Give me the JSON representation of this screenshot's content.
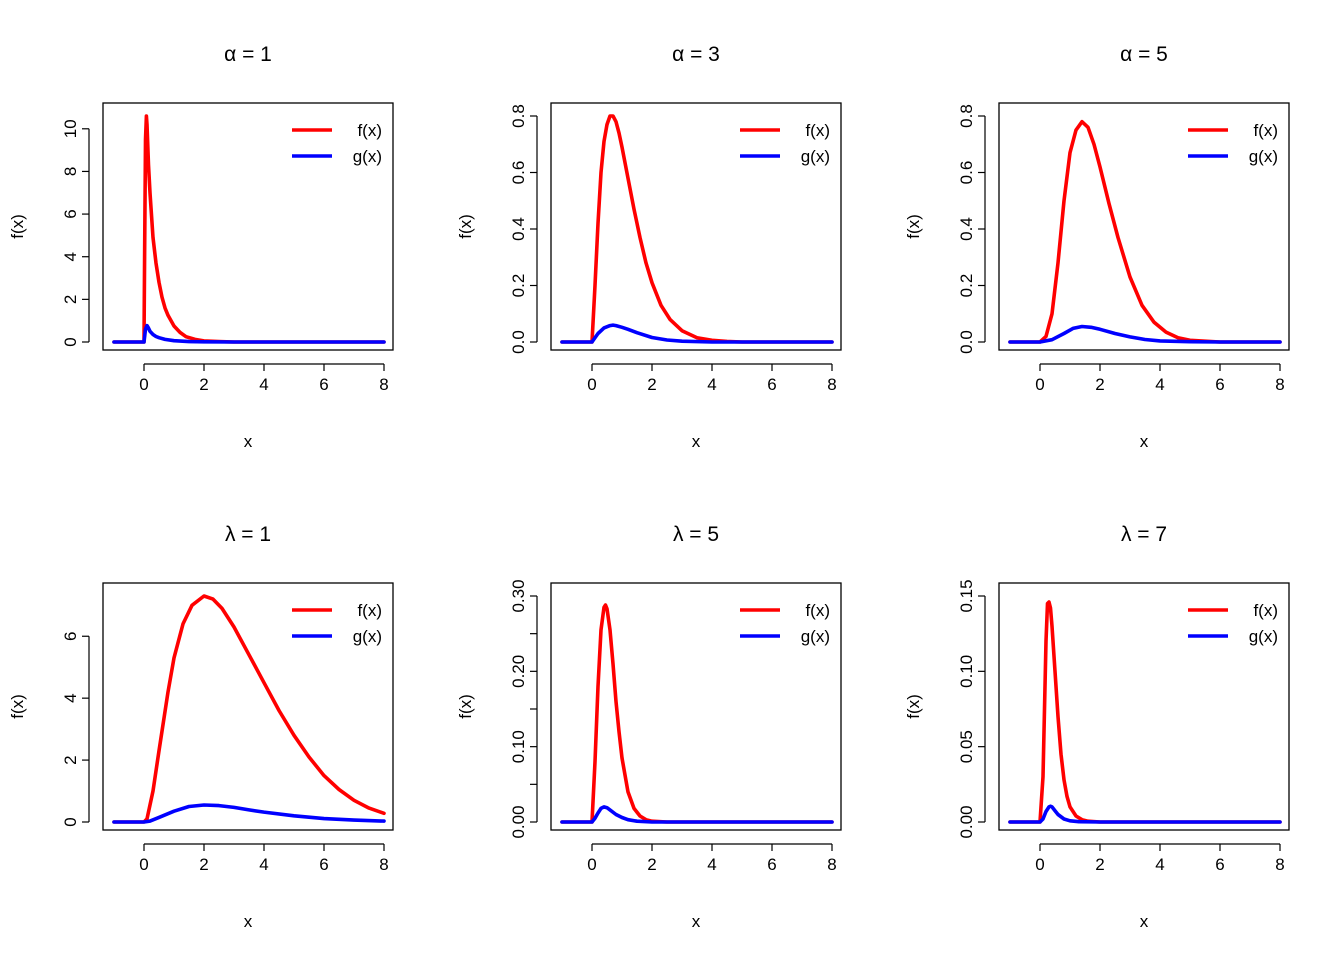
{
  "figure": {
    "x_axis_label": "x",
    "y_axis_label": "f(x)",
    "legend_position": "top-right",
    "legend": [
      {
        "name": "f(x)",
        "color": "#ff0000"
      },
      {
        "name": "g(x)",
        "color": "#0000ff"
      }
    ]
  },
  "chart_data": [
    {
      "type": "line",
      "title": "α = 1",
      "xlabel": "x",
      "ylabel": "f(x)",
      "xlim": [
        -1,
        8
      ],
      "ylim": [
        0,
        10.6
      ],
      "xticks": [
        0,
        2,
        4,
        6,
        8
      ],
      "xtick_labels": [
        "0",
        "2",
        "4",
        "6",
        "8"
      ],
      "yticks": [
        0,
        2,
        4,
        6,
        8,
        10
      ],
      "ytick_labels": [
        "0",
        "2",
        "4",
        "6",
        "8",
        "10"
      ],
      "grid": false,
      "legend": "top-right",
      "series": [
        {
          "name": "f(x)",
          "color": "#ff0000",
          "x": [
            -1,
            0,
            0.02,
            0.05,
            0.08,
            0.1,
            0.15,
            0.2,
            0.3,
            0.4,
            0.5,
            0.6,
            0.7,
            0.8,
            1.0,
            1.2,
            1.4,
            1.7,
            2.0,
            2.5,
            3,
            4,
            5,
            6,
            7,
            8
          ],
          "y": [
            0,
            0,
            4.0,
            9.5,
            10.6,
            10.2,
            8.3,
            7.0,
            4.9,
            3.7,
            2.8,
            2.1,
            1.6,
            1.25,
            0.75,
            0.45,
            0.25,
            0.12,
            0.05,
            0.02,
            0,
            0,
            0,
            0,
            0,
            0
          ]
        },
        {
          "name": "g(x)",
          "color": "#0000ff",
          "x": [
            -1,
            0,
            0.05,
            0.1,
            0.15,
            0.2,
            0.3,
            0.4,
            0.5,
            0.7,
            1.0,
            1.5,
            2.0,
            3,
            4,
            5,
            6,
            7,
            8
          ],
          "y": [
            0,
            0,
            0.6,
            0.77,
            0.65,
            0.5,
            0.35,
            0.26,
            0.2,
            0.12,
            0.06,
            0.02,
            0.01,
            0,
            0,
            0,
            0,
            0,
            0
          ]
        }
      ]
    },
    {
      "type": "line",
      "title": "α = 3",
      "xlabel": "x",
      "ylabel": "f(x)",
      "xlim": [
        -1,
        8
      ],
      "ylim": [
        0,
        0.8
      ],
      "xticks": [
        0,
        2,
        4,
        6,
        8
      ],
      "xtick_labels": [
        "0",
        "2",
        "4",
        "6",
        "8"
      ],
      "yticks": [
        0,
        0.2,
        0.4,
        0.6,
        0.8
      ],
      "ytick_labels": [
        "0.0",
        "0.2",
        "0.4",
        "0.6",
        "0.8"
      ],
      "grid": false,
      "legend": "top-right",
      "series": [
        {
          "name": "f(x)",
          "color": "#ff0000",
          "x": [
            -1,
            0,
            0.1,
            0.2,
            0.3,
            0.4,
            0.5,
            0.6,
            0.7,
            0.8,
            0.9,
            1.0,
            1.2,
            1.4,
            1.6,
            1.8,
            2.0,
            2.3,
            2.6,
            3.0,
            3.5,
            4.0,
            4.5,
            5,
            6,
            7,
            8
          ],
          "y": [
            0,
            0,
            0.2,
            0.42,
            0.6,
            0.71,
            0.77,
            0.8,
            0.8,
            0.78,
            0.74,
            0.69,
            0.58,
            0.47,
            0.37,
            0.28,
            0.21,
            0.13,
            0.08,
            0.04,
            0.015,
            0.006,
            0.002,
            0,
            0,
            0,
            0
          ]
        },
        {
          "name": "g(x)",
          "color": "#0000ff",
          "x": [
            -1,
            0,
            0.2,
            0.4,
            0.6,
            0.7,
            0.8,
            1.0,
            1.2,
            1.5,
            2.0,
            2.5,
            3.0,
            4.0,
            5,
            6,
            7,
            8
          ],
          "y": [
            0,
            0,
            0.03,
            0.05,
            0.058,
            0.06,
            0.058,
            0.052,
            0.045,
            0.033,
            0.016,
            0.007,
            0.003,
            0,
            0,
            0,
            0,
            0
          ]
        }
      ]
    },
    {
      "type": "line",
      "title": "α = 5",
      "xlabel": "x",
      "ylabel": "f(x)",
      "xlim": [
        -1,
        8
      ],
      "ylim": [
        0,
        0.8
      ],
      "xticks": [
        0,
        2,
        4,
        6,
        8
      ],
      "xtick_labels": [
        "0",
        "2",
        "4",
        "6",
        "8"
      ],
      "yticks": [
        0,
        0.2,
        0.4,
        0.6,
        0.8
      ],
      "ytick_labels": [
        "0.0",
        "0.2",
        "0.4",
        "0.6",
        "0.8"
      ],
      "grid": false,
      "legend": "top-right",
      "series": [
        {
          "name": "f(x)",
          "color": "#ff0000",
          "x": [
            -1,
            0,
            0.2,
            0.4,
            0.6,
            0.8,
            1.0,
            1.2,
            1.4,
            1.6,
            1.8,
            2.0,
            2.3,
            2.6,
            3.0,
            3.4,
            3.8,
            4.2,
            4.6,
            5.0,
            6,
            7,
            8
          ],
          "y": [
            0,
            0,
            0.02,
            0.1,
            0.28,
            0.5,
            0.67,
            0.75,
            0.78,
            0.76,
            0.7,
            0.62,
            0.49,
            0.37,
            0.23,
            0.13,
            0.07,
            0.035,
            0.015,
            0.006,
            0,
            0,
            0
          ]
        },
        {
          "name": "g(x)",
          "color": "#0000ff",
          "x": [
            -1,
            0,
            0.4,
            0.8,
            1.1,
            1.4,
            1.7,
            2.0,
            2.5,
            3.0,
            3.5,
            4.0,
            5,
            6,
            7,
            8
          ],
          "y": [
            0,
            0,
            0.008,
            0.03,
            0.048,
            0.055,
            0.052,
            0.045,
            0.03,
            0.018,
            0.009,
            0.004,
            0.001,
            0,
            0,
            0
          ]
        }
      ]
    },
    {
      "type": "line",
      "title": "λ = 1",
      "xlabel": "x",
      "ylabel": "f(x)",
      "xlim": [
        -1,
        8
      ],
      "ylim": [
        0,
        7.3
      ],
      "xticks": [
        0,
        2,
        4,
        6,
        8
      ],
      "xtick_labels": [
        "0",
        "2",
        "4",
        "6",
        "8"
      ],
      "yticks": [
        0,
        2,
        4,
        6
      ],
      "ytick_labels": [
        "0",
        "2",
        "4",
        "6"
      ],
      "grid": false,
      "legend": "top-right",
      "series": [
        {
          "name": "f(x)",
          "color": "#ff0000",
          "x": [
            -1,
            0,
            0.1,
            0.3,
            0.5,
            0.8,
            1.0,
            1.3,
            1.6,
            2.0,
            2.3,
            2.6,
            3.0,
            3.5,
            4.0,
            4.5,
            5.0,
            5.5,
            6.0,
            6.5,
            7.0,
            7.5,
            8.0
          ],
          "y": [
            0,
            0,
            0.1,
            1.0,
            2.3,
            4.2,
            5.3,
            6.4,
            7.0,
            7.3,
            7.2,
            6.9,
            6.3,
            5.4,
            4.5,
            3.6,
            2.8,
            2.1,
            1.5,
            1.05,
            0.7,
            0.45,
            0.28
          ]
        },
        {
          "name": "g(x)",
          "color": "#0000ff",
          "x": [
            -1,
            0,
            0.2,
            0.5,
            1.0,
            1.5,
            2.0,
            2.5,
            3.0,
            3.5,
            4.0,
            5.0,
            6.0,
            7.0,
            8.0
          ],
          "y": [
            0,
            0,
            0.03,
            0.15,
            0.35,
            0.5,
            0.55,
            0.53,
            0.47,
            0.39,
            0.32,
            0.2,
            0.11,
            0.06,
            0.03
          ]
        }
      ]
    },
    {
      "type": "line",
      "title": "λ = 5",
      "xlabel": "x",
      "ylabel": "f(x)",
      "xlim": [
        -1,
        8
      ],
      "ylim": [
        0,
        0.3
      ],
      "xticks": [
        0,
        2,
        4,
        6,
        8
      ],
      "xtick_labels": [
        "0",
        "2",
        "4",
        "6",
        "8"
      ],
      "yticks": [
        0,
        0.05,
        0.1,
        0.15,
        0.2,
        0.25,
        0.3
      ],
      "ytick_labels": [
        "0.00",
        "",
        "0.10",
        "",
        "0.20",
        "",
        "0.30"
      ],
      "grid": false,
      "legend": "top-right",
      "series": [
        {
          "name": "f(x)",
          "color": "#ff0000",
          "x": [
            -1,
            0,
            0.1,
            0.2,
            0.3,
            0.4,
            0.45,
            0.5,
            0.6,
            0.7,
            0.8,
            0.9,
            1.0,
            1.2,
            1.4,
            1.6,
            1.8,
            2.0,
            2.5,
            3,
            4,
            5,
            6,
            7,
            8
          ],
          "y": [
            0,
            0,
            0.08,
            0.18,
            0.255,
            0.285,
            0.288,
            0.283,
            0.255,
            0.21,
            0.16,
            0.12,
            0.085,
            0.04,
            0.018,
            0.008,
            0.003,
            0.001,
            0,
            0,
            0,
            0,
            0,
            0,
            0
          ]
        },
        {
          "name": "g(x)",
          "color": "#0000ff",
          "x": [
            -1,
            0,
            0.1,
            0.2,
            0.3,
            0.4,
            0.5,
            0.6,
            0.8,
            1.0,
            1.2,
            1.5,
            2.0,
            3,
            4,
            5,
            6,
            7,
            8
          ],
          "y": [
            0,
            0,
            0.005,
            0.012,
            0.018,
            0.02,
            0.019,
            0.016,
            0.01,
            0.006,
            0.003,
            0.001,
            0,
            0,
            0,
            0,
            0,
            0,
            0
          ]
        }
      ]
    },
    {
      "type": "line",
      "title": "λ = 7",
      "xlabel": "x",
      "ylabel": "f(x)",
      "xlim": [
        -1,
        8
      ],
      "ylim": [
        0,
        0.15
      ],
      "xticks": [
        0,
        2,
        4,
        6,
        8
      ],
      "xtick_labels": [
        "0",
        "2",
        "4",
        "6",
        "8"
      ],
      "yticks": [
        0,
        0.05,
        0.1,
        0.15
      ],
      "ytick_labels": [
        "0.00",
        "0.05",
        "0.10",
        "0.15"
      ],
      "grid": false,
      "legend": "top-right",
      "series": [
        {
          "name": "f(x)",
          "color": "#ff0000",
          "x": [
            -1,
            0,
            0.1,
            0.2,
            0.25,
            0.3,
            0.35,
            0.4,
            0.5,
            0.6,
            0.7,
            0.8,
            0.9,
            1.0,
            1.2,
            1.4,
            1.6,
            2.0,
            3,
            4,
            5,
            6,
            7,
            8
          ],
          "y": [
            0,
            0,
            0.03,
            0.12,
            0.145,
            0.146,
            0.142,
            0.13,
            0.1,
            0.07,
            0.045,
            0.028,
            0.017,
            0.01,
            0.004,
            0.0015,
            0.0005,
            0,
            0,
            0,
            0,
            0,
            0,
            0
          ]
        },
        {
          "name": "g(x)",
          "color": "#0000ff",
          "x": [
            -1,
            0,
            0.1,
            0.2,
            0.3,
            0.35,
            0.4,
            0.5,
            0.6,
            0.8,
            1.0,
            1.3,
            2.0,
            3,
            4,
            5,
            6,
            7,
            8
          ],
          "y": [
            0,
            0,
            0.002,
            0.007,
            0.01,
            0.0105,
            0.01,
            0.0075,
            0.005,
            0.002,
            0.0008,
            0.0002,
            0,
            0,
            0,
            0,
            0,
            0,
            0
          ]
        }
      ]
    }
  ]
}
